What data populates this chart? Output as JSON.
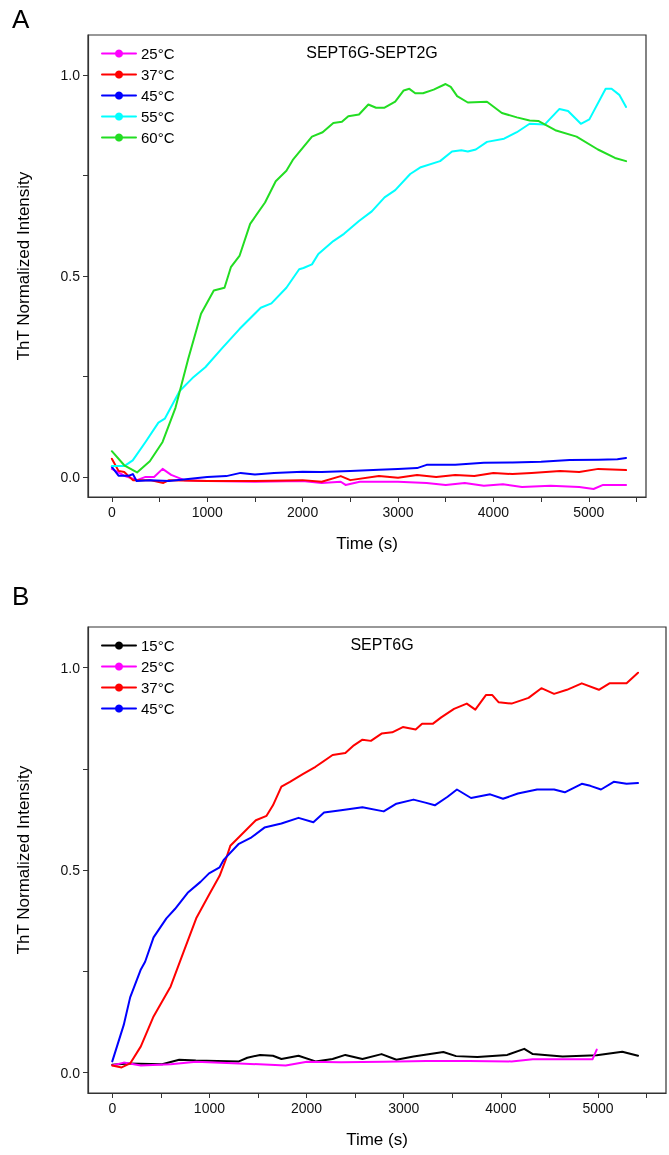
{
  "chart_data": [
    {
      "type": "line",
      "title": "SEPT6G-SEPT2G",
      "annotations": [
        "A"
      ],
      "xlabel": "Time (s)",
      "ylabel": "ThT Normalized Intensity",
      "xlim": [
        -250,
        5600
      ],
      "ylim": [
        -0.05,
        1.1
      ],
      "xticks": [
        0,
        {
          "value": 500,
          "label": null
        },
        1000,
        {
          "value": 1500,
          "label": null
        },
        2000,
        {
          "value": 2500,
          "label": null
        },
        3000,
        {
          "value": 3500,
          "label": null
        },
        4000,
        {
          "value": 4500,
          "label": null
        },
        5000,
        {
          "value": 5500,
          "label": null
        }
      ],
      "yticks": [
        {
          "value": 0,
          "label": "0.0"
        },
        {
          "value": 0.25,
          "label": null
        },
        {
          "value": 0.5,
          "label": "0.5"
        },
        {
          "value": 0.75,
          "label": null
        },
        {
          "value": 1,
          "label": "1.0"
        }
      ],
      "grid": false,
      "legend": "top left",
      "marker": "none",
      "line_style": "solid",
      "series": [
        {
          "name": "25°C",
          "color": "#ff00ff",
          "x": [
            0,
            130,
            264,
            353,
            443,
            532,
            622,
            760,
            1000,
            1500,
            2000,
            2200,
            2400,
            2450,
            2600,
            3000,
            3300,
            3500,
            3700,
            3900,
            4100,
            4300,
            4600,
            4900,
            5050,
            5150,
            5391
          ],
          "values": [
            0.02,
            0.003,
            -0.008,
            0.0,
            0.0,
            0.02,
            0.005,
            -0.008,
            -0.01,
            -0.012,
            -0.01,
            -0.015,
            -0.012,
            -0.02,
            -0.012,
            -0.012,
            -0.015,
            -0.02,
            -0.015,
            -0.022,
            -0.018,
            -0.025,
            -0.022,
            -0.025,
            -0.03,
            -0.02,
            -0.02
          ]
        },
        {
          "name": "37°C",
          "color": "#ff0000",
          "x": [
            0,
            70,
            130,
            220,
            400,
            540,
            600,
            1000,
            1500,
            2000,
            2200,
            2400,
            2500,
            2800,
            3000,
            3200,
            3400,
            3600,
            3800,
            4000,
            4200,
            4400,
            4700,
            4900,
            5100,
            5391
          ],
          "values": [
            0.045,
            0.015,
            0.012,
            -0.008,
            -0.008,
            -0.015,
            -0.008,
            -0.01,
            -0.01,
            -0.008,
            -0.012,
            0.002,
            -0.008,
            0.002,
            -0.002,
            0.005,
            0.0,
            0.005,
            0.002,
            0.01,
            0.007,
            0.01,
            0.015,
            0.012,
            0.02,
            0.017
          ]
        },
        {
          "name": "45°C",
          "color": "#0000ff",
          "x": [
            0,
            70,
            180,
            220,
            260,
            400,
            600,
            800,
            1000,
            1200,
            1350,
            1500,
            1700,
            2000,
            2200,
            2500,
            2800,
            3000,
            3200,
            3300,
            3600,
            3900,
            4200,
            4500,
            4800,
            5100,
            5300,
            5391
          ],
          "values": [
            0.025,
            0.003,
            0.003,
            0.007,
            -0.01,
            -0.008,
            -0.01,
            -0.005,
            0.0,
            0.002,
            0.01,
            0.006,
            0.01,
            0.013,
            0.012,
            0.015,
            0.018,
            0.02,
            0.022,
            0.03,
            0.03,
            0.035,
            0.036,
            0.038,
            0.042,
            0.043,
            0.044,
            0.047
          ]
        },
        {
          "name": "55°C",
          "color": "#00ffff",
          "x": [
            0,
            130,
            219,
            353,
            488,
            555,
            711,
            845,
            980,
            1159,
            1338,
            1561,
            1673,
            1830,
            1964,
            2009,
            2098,
            2165,
            2322,
            2434,
            2591,
            2725,
            2859,
            2971,
            3128,
            3239,
            3441,
            3566,
            3664,
            3732,
            3816,
            3933,
            4112,
            4246,
            4380,
            4537,
            4693,
            4783,
            4917,
            5006,
            5177,
            5239,
            5320,
            5391
          ],
          "values": [
            0.027,
            0.027,
            0.041,
            0.087,
            0.135,
            0.145,
            0.214,
            0.246,
            0.273,
            0.321,
            0.368,
            0.421,
            0.432,
            0.471,
            0.517,
            0.52,
            0.529,
            0.555,
            0.587,
            0.605,
            0.637,
            0.661,
            0.696,
            0.714,
            0.754,
            0.771,
            0.786,
            0.81,
            0.813,
            0.81,
            0.815,
            0.834,
            0.842,
            0.858,
            0.879,
            0.877,
            0.916,
            0.911,
            0.879,
            0.89,
            0.966,
            0.966,
            0.951,
            0.921
          ]
        },
        {
          "name": "60°C",
          "color": "#22dd22",
          "x": [
            0,
            130,
            264,
            398,
            532,
            667,
            801,
            935,
            1069,
            1181,
            1248,
            1338,
            1450,
            1606,
            1718,
            1830,
            1897,
            2098,
            2210,
            2322,
            2412,
            2479,
            2591,
            2689,
            2770,
            2859,
            2971,
            3060,
            3119,
            3181,
            3262,
            3374,
            3499,
            3553,
            3620,
            3732,
            3933,
            4089,
            4246,
            4380,
            4470,
            4649,
            4872,
            5096,
            5275,
            5391
          ],
          "values": [
            0.064,
            0.029,
            0.011,
            0.039,
            0.087,
            0.172,
            0.294,
            0.406,
            0.464,
            0.471,
            0.522,
            0.55,
            0.63,
            0.683,
            0.736,
            0.762,
            0.789,
            0.847,
            0.858,
            0.881,
            0.884,
            0.898,
            0.902,
            0.927,
            0.919,
            0.919,
            0.934,
            0.962,
            0.966,
            0.955,
            0.955,
            0.964,
            0.978,
            0.971,
            0.948,
            0.932,
            0.934,
            0.906,
            0.895,
            0.887,
            0.886,
            0.863,
            0.847,
            0.815,
            0.794,
            0.786
          ]
        }
      ]
    },
    {
      "type": "line",
      "title": "SEPT6G",
      "annotations": [
        "B"
      ],
      "xlabel": "Time (s)",
      "ylabel": "ThT Normalized Intensity",
      "xlim": [
        -250,
        5700
      ],
      "ylim": [
        -0.05,
        1.1
      ],
      "xticks": [
        0,
        {
          "value": 500,
          "label": null
        },
        1000,
        {
          "value": 1500,
          "label": null
        },
        2000,
        {
          "value": 2500,
          "label": null
        },
        3000,
        {
          "value": 3500,
          "label": null
        },
        4000,
        {
          "value": 4500,
          "label": null
        },
        5000,
        {
          "value": 5500,
          "label": null
        }
      ],
      "yticks": [
        {
          "value": 0,
          "label": "0.0"
        },
        {
          "value": 0.25,
          "label": null
        },
        {
          "value": 0.5,
          "label": "0.5"
        },
        {
          "value": 0.75,
          "label": null
        },
        {
          "value": 1,
          "label": "1.0"
        }
      ],
      "grid": false,
      "legend": "top left",
      "marker": "none",
      "line_style": "solid",
      "series": [
        {
          "name": "15°C",
          "color": "#000000",
          "x": [
            0,
            162,
            513,
            689,
            860,
            1303,
            1390,
            1522,
            1654,
            1741,
            1917,
            2092,
            2268,
            2399,
            2575,
            2772,
            2925,
            3101,
            3408,
            3539,
            3759,
            4066,
            4241,
            4329,
            4636,
            4987,
            5250,
            5412
          ],
          "values": [
            0.02,
            0.023,
            0.021,
            0.032,
            0.03,
            0.028,
            0.037,
            0.044,
            0.042,
            0.034,
            0.042,
            0.028,
            0.034,
            0.044,
            0.034,
            0.046,
            0.032,
            0.04,
            0.051,
            0.041,
            0.039,
            0.044,
            0.059,
            0.046,
            0.04,
            0.043,
            0.052,
            0.042
          ]
        },
        {
          "name": "25°C",
          "color": "#ff00ff",
          "x": [
            0,
            118,
            294,
            601,
            864,
            1303,
            1785,
            2004,
            2355,
            2794,
            3232,
            3671,
            4110,
            4329,
            4943,
            4987
          ],
          "values": [
            0.018,
            0.025,
            0.018,
            0.021,
            0.027,
            0.023,
            0.018,
            0.027,
            0.026,
            0.027,
            0.029,
            0.029,
            0.028,
            0.033,
            0.033,
            0.057
          ]
        },
        {
          "name": "37°C",
          "color": "#ff0000",
          "x": [
            0,
            96,
            184,
            294,
            425,
            601,
            732,
            864,
            996,
            1105,
            1171,
            1215,
            1303,
            1478,
            1588,
            1654,
            1741,
            1829,
            1961,
            2092,
            2268,
            2399,
            2487,
            2575,
            2662,
            2772,
            2882,
            2991,
            3123,
            3189,
            3298,
            3386,
            3518,
            3649,
            3737,
            3846,
            3912,
            3978,
            4110,
            4285,
            4417,
            4548,
            4680,
            4833,
            5009,
            5118,
            5294,
            5412
          ],
          "values": [
            0.018,
            0.013,
            0.023,
            0.065,
            0.139,
            0.213,
            0.297,
            0.381,
            0.439,
            0.486,
            0.528,
            0.56,
            0.581,
            0.623,
            0.634,
            0.66,
            0.706,
            0.718,
            0.737,
            0.755,
            0.784,
            0.789,
            0.808,
            0.822,
            0.819,
            0.837,
            0.84,
            0.853,
            0.847,
            0.861,
            0.861,
            0.877,
            0.898,
            0.911,
            0.896,
            0.932,
            0.932,
            0.914,
            0.911,
            0.925,
            0.949,
            0.935,
            0.945,
            0.961,
            0.945,
            0.961,
            0.961,
            0.987
          ]
        },
        {
          "name": "45°C",
          "color": "#0000ff",
          "x": [
            0,
            118,
            184,
            294,
            338,
            425,
            557,
            645,
            776,
            908,
            996,
            1105,
            1149,
            1303,
            1434,
            1566,
            1741,
            1917,
            2070,
            2180,
            2355,
            2575,
            2794,
            2925,
            3101,
            3232,
            3320,
            3452,
            3548,
            3693,
            3890,
            4022,
            4175,
            4373,
            4548,
            4658,
            4833,
            4921,
            5031,
            5162,
            5294,
            5412
          ],
          "values": [
            0.028,
            0.118,
            0.186,
            0.255,
            0.274,
            0.334,
            0.381,
            0.404,
            0.444,
            0.471,
            0.492,
            0.507,
            0.526,
            0.565,
            0.581,
            0.605,
            0.615,
            0.629,
            0.618,
            0.642,
            0.648,
            0.655,
            0.645,
            0.664,
            0.674,
            0.666,
            0.66,
            0.681,
            0.699,
            0.678,
            0.687,
            0.676,
            0.689,
            0.699,
            0.699,
            0.692,
            0.713,
            0.708,
            0.699,
            0.718,
            0.713,
            0.715
          ]
        }
      ]
    }
  ]
}
